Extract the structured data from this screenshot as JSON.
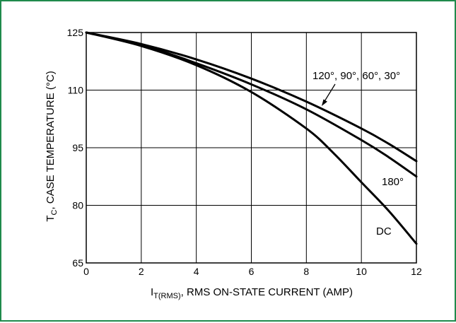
{
  "chart_data": {
    "type": "line",
    "title": "",
    "xlabel": {
      "symbol": "I",
      "subscript": "T(RMS)",
      "text": ", RMS ON-STATE CURRENT (AMP)"
    },
    "ylabel": {
      "symbol": "T",
      "subscript": "C",
      "text": ", CASE TEMPERATURE (°C)"
    },
    "xlim": [
      0,
      12
    ],
    "ylim": [
      65,
      125
    ],
    "xticks": [
      0,
      2,
      4,
      6,
      8,
      10,
      12
    ],
    "yticks": [
      65,
      80,
      95,
      110,
      125
    ],
    "grid": true,
    "series": [
      {
        "name": "120°, 90°, 60°, 30°",
        "x": [
          0,
          2,
          4,
          6,
          8,
          10,
          11,
          12
        ],
        "y": [
          125,
          122,
          118,
          113,
          107,
          100,
          96,
          91.5
        ]
      },
      {
        "name": "180°",
        "x": [
          0,
          2,
          4,
          6,
          8,
          10,
          11,
          12
        ],
        "y": [
          125,
          121.8,
          117,
          111.5,
          105,
          97,
          92.5,
          87.5
        ]
      },
      {
        "name": "DC",
        "x": [
          0,
          2,
          4,
          6,
          8,
          9,
          10,
          11,
          12
        ],
        "y": [
          125,
          121.5,
          116.5,
          109.5,
          100,
          93.5,
          86,
          78.5,
          70
        ]
      }
    ],
    "annotations": [
      {
        "text": "120°, 90°, 60°, 30°",
        "series": 0
      },
      {
        "text": "180°",
        "series": 1
      },
      {
        "text": "DC",
        "series": 2
      }
    ],
    "line_color": "#000000"
  },
  "frame_color": "#1f8a4c"
}
